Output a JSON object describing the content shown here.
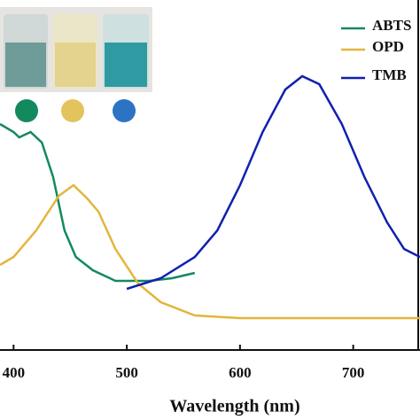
{
  "chart_data": {
    "type": "line",
    "x_label": "Wavelength (nm)",
    "xlim": [
      388,
      759
    ],
    "xticks": [
      400,
      500,
      600,
      700
    ],
    "ylim": [
      0,
      1.3
    ],
    "legend": "upper right",
    "series": [
      {
        "name": "ABTS",
        "color": "#138a5e",
        "x": [
          388,
          400,
          405,
          415,
          425,
          435,
          445,
          455,
          470,
          490,
          520,
          540,
          560
        ],
        "values": [
          0.85,
          0.82,
          0.8,
          0.82,
          0.78,
          0.65,
          0.45,
          0.35,
          0.3,
          0.26,
          0.26,
          0.27,
          0.29
        ]
      },
      {
        "name": "OPD",
        "color": "#e3b53c",
        "x": [
          388,
          400,
          420,
          440,
          453,
          465,
          475,
          490,
          510,
          530,
          560,
          600,
          700,
          759
        ],
        "values": [
          0.32,
          0.35,
          0.45,
          0.58,
          0.62,
          0.57,
          0.52,
          0.38,
          0.25,
          0.18,
          0.13,
          0.12,
          0.12,
          0.12
        ]
      },
      {
        "name": "TMB",
        "color": "#1020b0",
        "x": [
          500,
          530,
          560,
          580,
          600,
          620,
          640,
          655,
          670,
          690,
          710,
          730,
          745,
          759
        ],
        "values": [
          0.23,
          0.27,
          0.35,
          0.45,
          0.62,
          0.82,
          0.98,
          1.03,
          1.0,
          0.85,
          0.65,
          0.48,
          0.38,
          0.35
        ]
      }
    ]
  }
}
